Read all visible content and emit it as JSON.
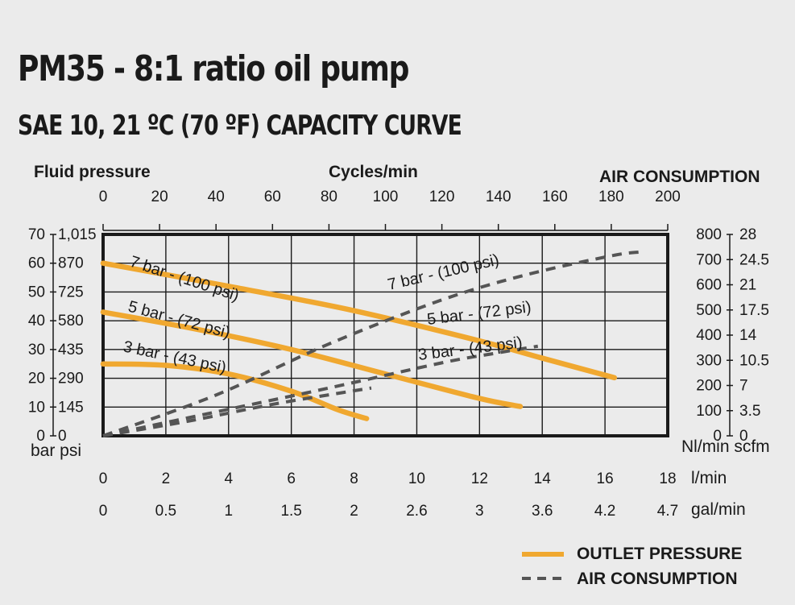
{
  "chart_data": {
    "type": "line",
    "title": "PM35 - 8:1 ratio oil pump",
    "subtitle": "SAE 10, 21 ºC (70 ºF) CAPACITY CURVE",
    "colors": {
      "outlet": "#f0a830",
      "air": "#555555",
      "frame": "#1a1a1a",
      "background": "#ebebeb"
    },
    "axes": {
      "top": {
        "label": "Cycles/min",
        "ticks": [
          "0",
          "20",
          "40",
          "60",
          "80",
          "100",
          "120",
          "140",
          "160",
          "180",
          "200"
        ],
        "range": [
          0,
          200
        ]
      },
      "bottom_lmin": {
        "unit": "l/min",
        "ticks": [
          "0",
          "2",
          "4",
          "6",
          "8",
          "10",
          "12",
          "14",
          "16",
          "18"
        ],
        "range": [
          0,
          18
        ]
      },
      "bottom_gal": {
        "unit": "gal/min",
        "ticks": [
          "0",
          "0.5",
          "1",
          "1.5",
          "2",
          "2.6",
          "3",
          "3.6",
          "4.2",
          "4.7"
        ]
      },
      "left": {
        "label": "Fluid pressure",
        "units": "bar psi",
        "bar_ticks": [
          "70",
          "60",
          "50",
          "40",
          "30",
          "20",
          "10",
          "0"
        ],
        "psi_ticks": [
          "1,015",
          "870",
          "725",
          "580",
          "435",
          "290",
          "145",
          "0"
        ],
        "range": [
          0,
          70
        ]
      },
      "right": {
        "label": "AIR CONSUMPTION",
        "units": "Nl/min scfm",
        "nl_ticks": [
          "800",
          "700",
          "600",
          "500",
          "400",
          "300",
          "200",
          "100",
          "0"
        ],
        "nl_values": [
          800,
          700,
          600,
          500,
          400,
          300,
          200,
          100,
          0
        ],
        "scfm_ticks": [
          "28",
          "24.5",
          "21",
          "17.5",
          "14",
          "10.5",
          "7",
          "3.5",
          "0"
        ],
        "range": [
          0,
          800
        ]
      }
    },
    "grid": true,
    "series": [
      {
        "name": "7 bar - (100 psi)",
        "kind": "outlet",
        "label": "7 bar - (100 psi)",
        "points": [
          [
            0,
            60
          ],
          [
            4,
            52
          ],
          [
            8,
            43.5
          ],
          [
            12,
            33
          ],
          [
            14,
            27
          ],
          [
            16.3,
            20.2
          ]
        ]
      },
      {
        "name": "5 bar - (72 psi)",
        "kind": "outlet",
        "label": "5 bar - (72 psi)",
        "points": [
          [
            0,
            43
          ],
          [
            3,
            37
          ],
          [
            6,
            30
          ],
          [
            9,
            21.5
          ],
          [
            12,
            13
          ],
          [
            13.3,
            10.2
          ]
        ]
      },
      {
        "name": "3 bar - (43 psi)",
        "kind": "outlet",
        "label": "3 bar - (43 psi)",
        "points": [
          [
            0,
            25
          ],
          [
            2,
            24.5
          ],
          [
            4,
            21.5
          ],
          [
            6,
            15.5
          ],
          [
            7.5,
            9
          ],
          [
            8.4,
            6
          ]
        ]
      },
      {
        "name": "7 bar - (100 psi)",
        "kind": "air",
        "label": "7 bar - (100 psi)",
        "points": [
          [
            0,
            0
          ],
          [
            40,
            162
          ],
          [
            80,
            365
          ],
          [
            120,
            540
          ],
          [
            150,
            640
          ],
          [
            180,
            715
          ],
          [
            190,
            730
          ]
        ]
      },
      {
        "name": "5 bar - (72 psi)",
        "kind": "air",
        "label": "5 bar - (72 psi)",
        "points": [
          [
            0,
            0
          ],
          [
            40,
            95
          ],
          [
            80,
            190
          ],
          [
            120,
            290
          ],
          [
            140,
            330
          ],
          [
            154,
            356
          ]
        ]
      },
      {
        "name": "3 bar - (43 psi)",
        "kind": "air",
        "label": "3 bar - (43 psi)",
        "points": [
          [
            0,
            0
          ],
          [
            30,
            58
          ],
          [
            60,
            125
          ],
          [
            85,
            172
          ],
          [
            95,
            190
          ]
        ]
      }
    ],
    "legend": [
      {
        "label": "OUTLET PRESSURE",
        "kind": "outlet"
      },
      {
        "label": "AIR CONSUMPTION",
        "kind": "air"
      }
    ],
    "legend_position": "bottom-right"
  }
}
